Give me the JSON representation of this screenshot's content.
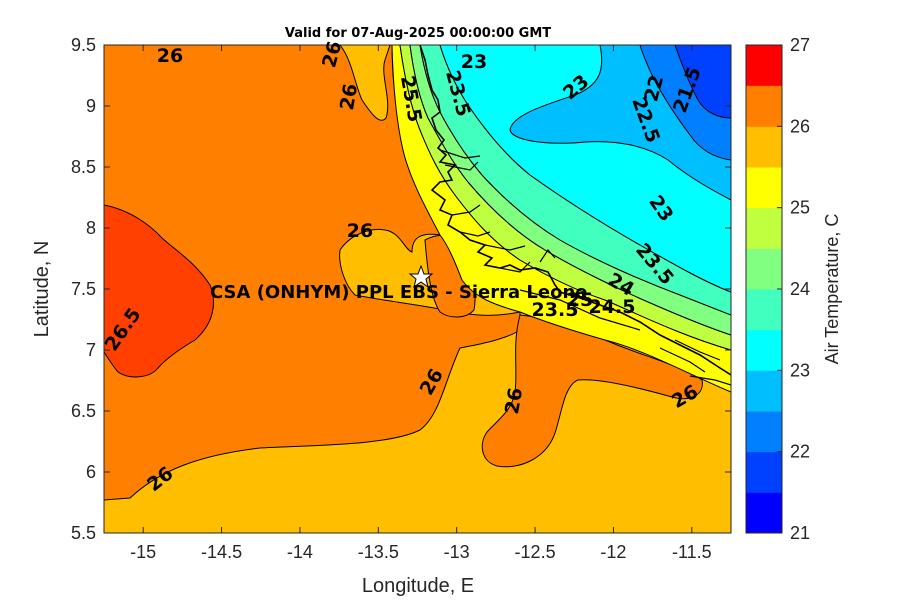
{
  "map": {
    "title": "Valid for 07-Aug-2025 00:00:00 GMT",
    "xlabel": "Longitude, E",
    "ylabel": "Latitude, N",
    "x_ticks": [
      "-15",
      "-14.5",
      "-14",
      "-13.5",
      "-13",
      "-12.5",
      "-12",
      "-11.5"
    ],
    "y_ticks": [
      "9.5",
      "9",
      "8.5",
      "8",
      "7.5",
      "7",
      "6.5",
      "6",
      "5.5"
    ],
    "xlim": [
      -15.25,
      -11.25
    ],
    "ylim": [
      5.5,
      9.5
    ],
    "site": {
      "label": "CSA (ONHYM) PPL EBS  - Sierra Leone",
      "marker": "star-icon",
      "lon": -13.22,
      "lat": 7.59
    },
    "contour_labels": [
      "26",
      "26",
      "26",
      "26",
      "26",
      "26",
      "26",
      "26",
      "26.5",
      "25.5",
      "23.5",
      "23",
      "23",
      "22",
      "21.5",
      "22.5",
      "23",
      "23.5",
      "24",
      "24.5",
      "25",
      "23.5"
    ],
    "colorbar": {
      "label": "Air Temperature, C",
      "ticks": [
        "27",
        "26",
        "25",
        "24",
        "23",
        "22",
        "21"
      ],
      "min": 21,
      "max": 27,
      "colors": [
        "#0000ff",
        "#0040ff",
        "#0080ff",
        "#00bfff",
        "#00ffff",
        "#40ffbf",
        "#80ff80",
        "#bfff40",
        "#ffff00",
        "#ffbf00",
        "#ff8000",
        "#ff4000",
        "#ff0000"
      ]
    },
    "fill_colors": {
      "t26_5": "#ff4000",
      "t26": "#ff8000",
      "t25_5": "#ffbf00",
      "t25": "#ffff00",
      "t24_5": "#bfff40",
      "t24": "#80ff80",
      "t23_5": "#40ffbf",
      "t23": "#00ffff",
      "t22_5": "#00bfff",
      "t22": "#0080ff",
      "t21_5": "#0040ff"
    }
  }
}
